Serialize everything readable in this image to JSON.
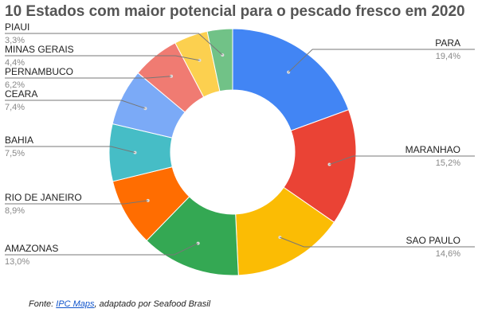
{
  "chart_data": {
    "type": "pie",
    "donut": true,
    "title": "10 Estados com maior potencial para o pescado fresco em 2020",
    "slices": [
      {
        "label": "PARA",
        "value": 19.4,
        "value_label": "19,4%",
        "color": "#4285F4"
      },
      {
        "label": "MARANHAO",
        "value": 15.2,
        "value_label": "15,2%",
        "color": "#EA4335"
      },
      {
        "label": "SAO PAULO",
        "value": 14.6,
        "value_label": "14,6%",
        "color": "#FBBC04"
      },
      {
        "label": "AMAZONAS",
        "value": 13.0,
        "value_label": "13,0%",
        "color": "#34A853"
      },
      {
        "label": "RIO DE JANEIRO",
        "value": 8.9,
        "value_label": "8,9%",
        "color": "#FF6D01"
      },
      {
        "label": "BAHIA",
        "value": 7.5,
        "value_label": "7,5%",
        "color": "#46BDC6"
      },
      {
        "label": "CEARA",
        "value": 7.4,
        "value_label": "7,4%",
        "color": "#7BAAF7"
      },
      {
        "label": "PERNAMBUCO",
        "value": 6.2,
        "value_label": "6,2%",
        "color": "#F07B72"
      },
      {
        "label": "MINAS GERAIS",
        "value": 4.4,
        "value_label": "4,4%",
        "color": "#FCD04F"
      },
      {
        "label": "PIAUI",
        "value": 3.3,
        "value_label": "3,3%",
        "color": "#71C287"
      }
    ],
    "legend": "none"
  },
  "source": {
    "prefix": "Fonte: ",
    "link_text": "IPC Maps",
    "suffix": ", adaptado por Seafood Brasil"
  }
}
